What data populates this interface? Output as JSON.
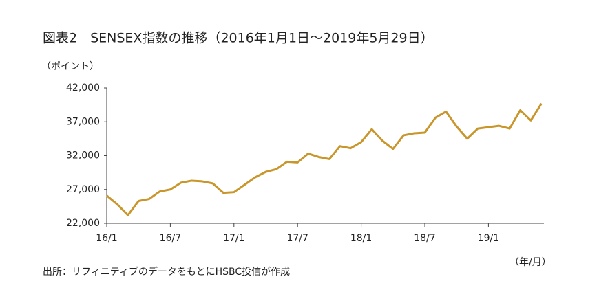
{
  "chart_data": {
    "type": "line",
    "title": "図表2　SENSEX指数の推移（2016年1月1日～2019年5月29日）",
    "y_axis_label": "（ポイント）",
    "x_axis_label": "（年/月）",
    "source": "出所：リフィニティブのデータをもとにHSBC投信が作成",
    "categories": [
      "16/1",
      null,
      null,
      null,
      null,
      null,
      "16/7",
      null,
      null,
      null,
      null,
      null,
      "17/1",
      null,
      null,
      null,
      null,
      null,
      "17/7",
      null,
      null,
      null,
      null,
      null,
      "18/1",
      null,
      null,
      null,
      null,
      null,
      "18/7",
      null,
      null,
      null,
      null,
      null,
      "19/1",
      null,
      null,
      null,
      null,
      null
    ],
    "series": [
      {
        "name": "SENSEX",
        "color": "#c8962b",
        "values": [
          26100,
          24800,
          23200,
          25300,
          25600,
          26700,
          27000,
          28000,
          28300,
          28200,
          27900,
          26500,
          26600,
          27700,
          28800,
          29600,
          30000,
          31100,
          31000,
          32300,
          31800,
          31500,
          33400,
          33100,
          34000,
          35900,
          34200,
          33000,
          35000,
          35300,
          35400,
          37600,
          38500,
          36300,
          34500,
          36000,
          36200,
          36400,
          36000,
          38700,
          37200,
          39700
        ]
      }
    ],
    "ylim": [
      22000,
      42000
    ],
    "yticks": [
      {
        "value": 22000,
        "label": "22,000"
      },
      {
        "value": 27000,
        "label": "27,000"
      },
      {
        "value": 32000,
        "label": "32,000"
      },
      {
        "value": 37000,
        "label": "37,000"
      },
      {
        "value": 42000,
        "label": "42,000"
      }
    ]
  }
}
